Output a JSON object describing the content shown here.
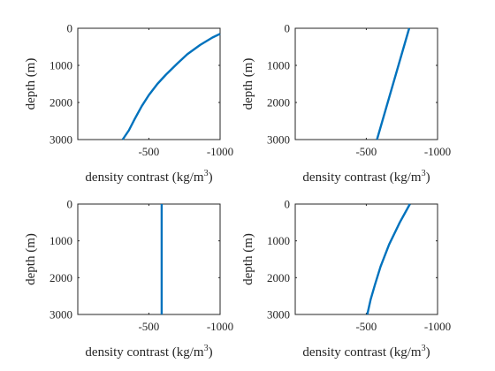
{
  "chart_data": [
    {
      "type": "line",
      "xlabel": "density contrast (kg/m",
      "xlabel_sup": "3",
      "xlabel_end": ")",
      "ylabel": "depth (m)",
      "xlim": [
        -1.2,
        -1000
      ],
      "ylim": [
        0,
        3000
      ],
      "x_reversed": true,
      "y_reversed": true,
      "xticks": [
        -500,
        -1000
      ],
      "xtick_labels": [
        "-500",
        "-1000"
      ],
      "yticks": [
        0,
        1000,
        2000,
        3000
      ],
      "ytick_labels": [
        "0",
        "1000",
        "2000",
        "3000"
      ],
      "grid": false,
      "series": [
        {
          "color": "#0072bd",
          "x": [
            -1000,
            -946,
            -860,
            -770,
            -700,
            -620,
            -560,
            -500,
            -450,
            -400,
            -360,
            -316
          ],
          "y": [
            150,
            250,
            450,
            700,
            950,
            1250,
            1500,
            1800,
            2100,
            2450,
            2750,
            3000
          ]
        }
      ]
    },
    {
      "type": "line",
      "xlabel": "density contrast (kg/m",
      "xlabel_sup": "3",
      "xlabel_end": ")",
      "ylabel": "depth (m)",
      "xlim": [
        -1.2,
        -1000
      ],
      "ylim": [
        0,
        3000
      ],
      "x_reversed": true,
      "y_reversed": true,
      "xticks": [
        -500,
        -1000
      ],
      "xtick_labels": [
        "-500",
        "-1000"
      ],
      "yticks": [
        0,
        1000,
        2000,
        3000
      ],
      "ytick_labels": [
        "0",
        "1000",
        "2000",
        "3000"
      ],
      "grid": false,
      "series": [
        {
          "color": "#0072bd",
          "x": [
            -801,
            -575
          ],
          "y": [
            0,
            3000
          ]
        }
      ]
    },
    {
      "type": "line",
      "xlabel": "density contrast (kg/m",
      "xlabel_sup": "3",
      "xlabel_end": ")",
      "ylabel": "depth (m)",
      "xlim": [
        -1.2,
        -1000
      ],
      "ylim": [
        0,
        3000
      ],
      "x_reversed": true,
      "y_reversed": true,
      "xticks": [
        -500,
        -1000
      ],
      "xtick_labels": [
        "-500",
        "-1000"
      ],
      "yticks": [
        0,
        1000,
        2000,
        3000
      ],
      "ytick_labels": [
        "0",
        "1000",
        "2000",
        "3000"
      ],
      "grid": false,
      "series": [
        {
          "color": "#0072bd",
          "x": [
            -590,
            -590
          ],
          "y": [
            0,
            3000
          ]
        }
      ]
    },
    {
      "type": "line",
      "xlabel": "density contrast (kg/m",
      "xlabel_sup": "3",
      "xlabel_end": ")",
      "ylabel": "depth (m)",
      "xlim": [
        -1.2,
        -1000
      ],
      "ylim": [
        0,
        3000
      ],
      "x_reversed": true,
      "y_reversed": true,
      "xticks": [
        -500,
        -1000
      ],
      "xtick_labels": [
        "-500",
        "-1000"
      ],
      "yticks": [
        0,
        1000,
        2000,
        3000
      ],
      "ytick_labels": [
        "0",
        "1000",
        "2000",
        "3000"
      ],
      "grid": false,
      "series": [
        {
          "color": "#0072bd",
          "x": [
            -806,
            -735,
            -660,
            -600,
            -560,
            -530,
            -507
          ],
          "y": [
            0,
            500,
            1100,
            1700,
            2200,
            2600,
            3000
          ]
        }
      ]
    }
  ]
}
